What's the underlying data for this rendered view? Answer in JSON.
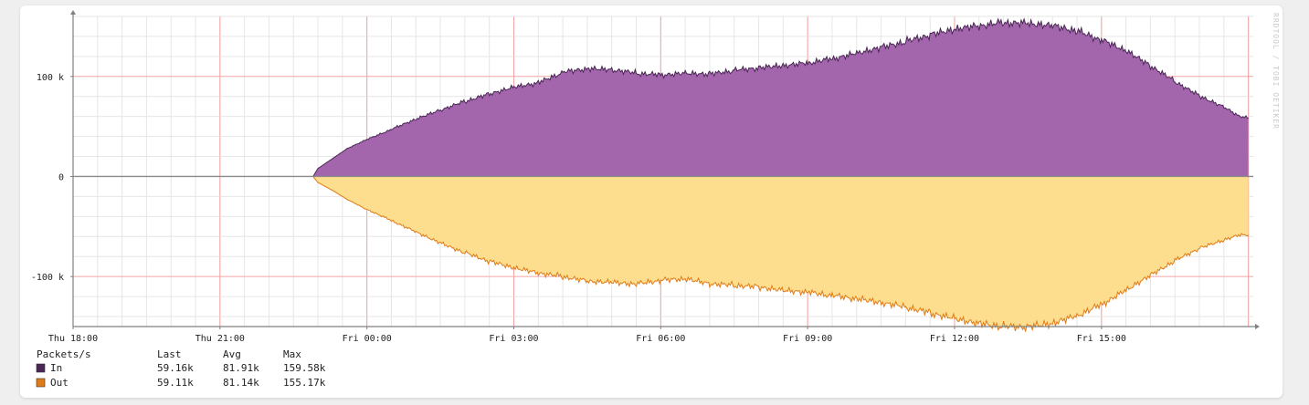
{
  "colors": {
    "in_fill": "#a366ad",
    "in_line": "#4a2754",
    "out_fill": "#fdde8e",
    "out_line": "#e07b16",
    "grid_minor": "#e6e6e6",
    "grid_major": "#f3a5a5",
    "axis": "#808080"
  },
  "watermark": "RRDTOOL / TOBI OETIKER",
  "legend": {
    "header": {
      "label": "Packets/s",
      "last": "Last",
      "avg": "Avg",
      "max": "Max"
    },
    "rows": [
      {
        "name": "In",
        "color": "#4a2754",
        "last": "59.16k",
        "avg": "81.91k",
        "max": "159.58k"
      },
      {
        "name": "Out",
        "color": "#e07b16",
        "last": "59.11k",
        "avg": "81.14k",
        "max": "155.17k"
      }
    ]
  },
  "chart_data": {
    "type": "area",
    "ylabel": "",
    "xlabel": "",
    "x_unit": "hours",
    "xlim": [
      18,
      42.1
    ],
    "ylim": [
      -150000,
      160000
    ],
    "y_ticks": [
      {
        "value": 100000,
        "label": "100 k"
      },
      {
        "value": 0,
        "label": "0"
      },
      {
        "value": -100000,
        "label": "-100 k"
      }
    ],
    "x_ticks": [
      {
        "value": 18,
        "label": "Thu 18:00"
      },
      {
        "value": 21,
        "label": "Thu 21:00"
      },
      {
        "value": 24,
        "label": "Fri 00:00"
      },
      {
        "value": 27,
        "label": "Fri 03:00"
      },
      {
        "value": 30,
        "label": "Fri 06:00"
      },
      {
        "value": 33,
        "label": "Fri 09:00"
      },
      {
        "value": 36,
        "label": "Fri 12:00"
      },
      {
        "value": 39,
        "label": "Fri 15:00"
      }
    ],
    "grid": true,
    "x": [
      18,
      22.9,
      23.0,
      23.3,
      23.6,
      24.0,
      24.5,
      25.0,
      25.5,
      26.0,
      26.5,
      27.0,
      27.5,
      28.0,
      28.5,
      29.0,
      29.5,
      30.0,
      30.5,
      31.0,
      31.5,
      32.0,
      32.5,
      33.0,
      33.5,
      34.0,
      34.5,
      35.0,
      35.5,
      36.0,
      36.5,
      37.0,
      37.5,
      38.0,
      38.5,
      39.0,
      39.5,
      40.0,
      40.5,
      41.0,
      41.5,
      41.8,
      42.0
    ],
    "series": [
      {
        "name": "In",
        "values": [
          0,
          0,
          8000,
          18000,
          28000,
          37000,
          47000,
          57000,
          66000,
          75000,
          83000,
          90000,
          94000,
          104000,
          107000,
          106000,
          103000,
          102000,
          104000,
          103000,
          106000,
          108000,
          110000,
          113000,
          118000,
          124000,
          130000,
          135000,
          141000,
          146000,
          150000,
          154000,
          154000,
          152000,
          146000,
          136000,
          125000,
          110000,
          95000,
          81000,
          70000,
          61000,
          59000
        ]
      },
      {
        "name": "Out",
        "values": [
          0,
          0,
          -6000,
          -14000,
          -23000,
          -33000,
          -44000,
          -55000,
          -66000,
          -76000,
          -85000,
          -92000,
          -97000,
          -100000,
          -104000,
          -105000,
          -107000,
          -104000,
          -103000,
          -108000,
          -109000,
          -110000,
          -113000,
          -115000,
          -119000,
          -123000,
          -127000,
          -131000,
          -136000,
          -141000,
          -146000,
          -150000,
          -151000,
          -148000,
          -140000,
          -128000,
          -113000,
          -98000,
          -84000,
          -72000,
          -64000,
          -59000,
          -59000
        ]
      }
    ]
  }
}
